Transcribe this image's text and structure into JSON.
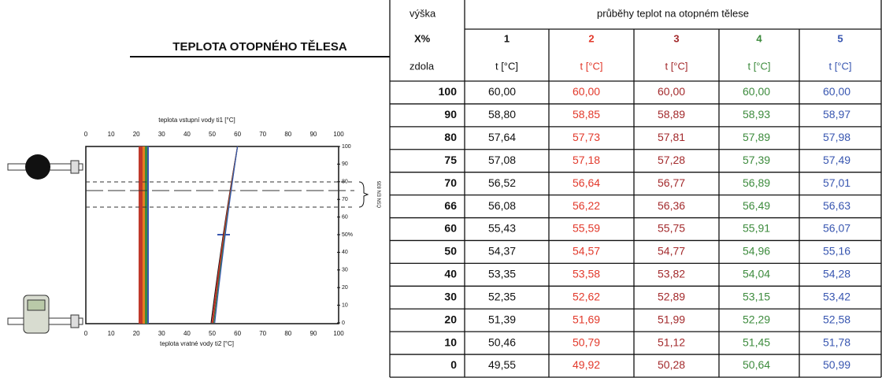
{
  "left": {
    "title": "TEPLOTA OTOPNÉHO TĚLESA",
    "diagram": {
      "top_axis_label": "teplota vstupní vody ti1 [°C]",
      "bottom_axis_label": "teplota vratné vody ti2 [°C]",
      "x_ticks": [
        "0",
        "10",
        "20",
        "30",
        "40",
        "50",
        "60",
        "70",
        "80",
        "90",
        "100"
      ],
      "y_ticks": [
        "0",
        "10",
        "20",
        "30",
        "40",
        "50%",
        "60",
        "70",
        "80",
        "90",
        "100"
      ],
      "norm": "ČSN EN 835"
    }
  },
  "table": {
    "header": {
      "height": "výška",
      "caption": "průběhy teplot na otopném tělese",
      "percent": "X%",
      "from_bottom": "zdola",
      "columns": [
        "1",
        "2",
        "3",
        "4",
        "5"
      ],
      "units": [
        "t [°C]",
        "t [°C]",
        "t [°C]",
        "t [°C]",
        "t [°C]"
      ],
      "colors": [
        "#111111",
        "#e2392b",
        "#a32a2c",
        "#3d8b3d",
        "#3856b0"
      ]
    },
    "rows": [
      {
        "height": "100",
        "values": [
          "60,00",
          "60,00",
          "60,00",
          "60,00",
          "60,00"
        ]
      },
      {
        "height": "90",
        "values": [
          "58,80",
          "58,85",
          "58,89",
          "58,93",
          "58,97"
        ]
      },
      {
        "height": "80",
        "values": [
          "57,64",
          "57,73",
          "57,81",
          "57,89",
          "57,98"
        ]
      },
      {
        "height": "75",
        "values": [
          "57,08",
          "57,18",
          "57,28",
          "57,39",
          "57,49"
        ]
      },
      {
        "height": "70",
        "values": [
          "56,52",
          "56,64",
          "56,77",
          "56,89",
          "57,01"
        ]
      },
      {
        "height": "66",
        "values": [
          "56,08",
          "56,22",
          "56,36",
          "56,49",
          "56,63"
        ]
      },
      {
        "height": "60",
        "values": [
          "55,43",
          "55,59",
          "55,75",
          "55,91",
          "56,07"
        ]
      },
      {
        "height": "50",
        "values": [
          "54,37",
          "54,57",
          "54,77",
          "54,96",
          "55,16"
        ]
      },
      {
        "height": "40",
        "values": [
          "53,35",
          "53,58",
          "53,82",
          "54,04",
          "54,28"
        ]
      },
      {
        "height": "30",
        "values": [
          "52,35",
          "52,62",
          "52,89",
          "53,15",
          "53,42"
        ]
      },
      {
        "height": "20",
        "values": [
          "51,39",
          "51,69",
          "51,99",
          "52,29",
          "52,58"
        ]
      },
      {
        "height": "10",
        "values": [
          "50,46",
          "50,79",
          "51,12",
          "51,45",
          "51,78"
        ]
      },
      {
        "height": "0",
        "values": [
          "49,55",
          "49,92",
          "50,28",
          "50,64",
          "50,99"
        ]
      }
    ]
  }
}
